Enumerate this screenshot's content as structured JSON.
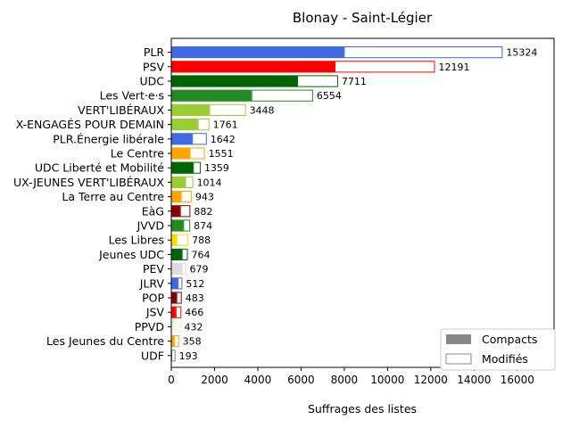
{
  "chart_data": {
    "type": "bar",
    "orientation": "horizontal",
    "stacked": true,
    "title": "Blonay - Saint-Légier",
    "xlabel": "Suffrages des listes",
    "ylabel": "",
    "xlim": [
      0,
      17700
    ],
    "xticks": [
      "0",
      "2000",
      "4000",
      "6000",
      "8000",
      "10000",
      "12000",
      "14000",
      "16000"
    ],
    "xtick_values": [
      0,
      2000,
      4000,
      6000,
      8000,
      10000,
      12000,
      14000,
      16000
    ],
    "grid": false,
    "legend_position": "lower-right",
    "legend": [
      {
        "label": "Compacts",
        "style": "filled",
        "color": "#888888"
      },
      {
        "label": "Modifiés",
        "style": "outline",
        "color": "#888888"
      }
    ],
    "series": [
      {
        "name": "Compacts",
        "style": "filled",
        "values": [
          7980,
          7550,
          5820,
          3700,
          1750,
          1220,
          960,
          850,
          1000,
          640,
          440,
          400,
          550,
          230,
          480,
          480,
          300,
          230,
          200,
          220,
          120,
          0
        ]
      },
      {
        "name": "Modifiés",
        "style": "outline",
        "values": [
          7344,
          4641,
          1891,
          2854,
          1698,
          541,
          682,
          701,
          359,
          374,
          503,
          482,
          324,
          558,
          284,
          199,
          212,
          253,
          266,
          212,
          238,
          193
        ]
      }
    ],
    "categories": [
      "PLR",
      "PSV",
      "UDC",
      "Les Vert·e·s",
      "VERT'LIBÉRAUX",
      "X-ENGAGÉS POUR DEMAIN",
      "PLR.Énergie libérale",
      "Le Centre",
      "UDC Liberté et Mobilité",
      "UX-JEUNES VERT'LIBÉRAUX",
      "La Terre au Centre",
      "EàG",
      "JVVD",
      "Les Libres",
      "Jeunes UDC",
      "PEV",
      "JLRV",
      "POP",
      "JSV",
      "PPVD",
      "Les Jeunes du Centre",
      "UDF"
    ],
    "totals": [
      "15324",
      "12191",
      "7711",
      "6554",
      "3448",
      "1761",
      "1642",
      "1551",
      "1359",
      "1014",
      "943",
      "882",
      "874",
      "788",
      "764",
      "679",
      "512",
      "483",
      "466",
      "432",
      "358",
      "193"
    ],
    "total_values": [
      15324,
      12191,
      7711,
      6554,
      3448,
      1761,
      1642,
      1551,
      1359,
      1014,
      943,
      882,
      874,
      788,
      764,
      679,
      512,
      483,
      466,
      432,
      358,
      193
    ],
    "colors": [
      "#4169e1",
      "#ff0000",
      "#006400",
      "#228b22",
      "#9acd32",
      "#9acd32",
      "#4169e1",
      "#ffa500",
      "#006400",
      "#9acd32",
      "#ffa500",
      "#8b0000",
      "#228b22",
      "#ffd700",
      "#006400",
      "#dcdcdc",
      "#4169e1",
      "#8b0000",
      "#ff0000",
      "#f5f5dc",
      "#ffa500",
      "#b0c4de"
    ],
    "edge_colors": [
      "#4169e1",
      "#ff0000",
      "#006400",
      "#228b22",
      "#9acd32",
      "#9acd32",
      "#4169e1",
      "#ffa500",
      "#006400",
      "#9acd32",
      "#ffa500",
      "#8b0000",
      "#228b22",
      "#ffd700",
      "#006400",
      "#dcdcdc",
      "#4169e1",
      "#8b0000",
      "#ff0000",
      "#f5f5dc",
      "#ffa500",
      "#808080"
    ]
  }
}
